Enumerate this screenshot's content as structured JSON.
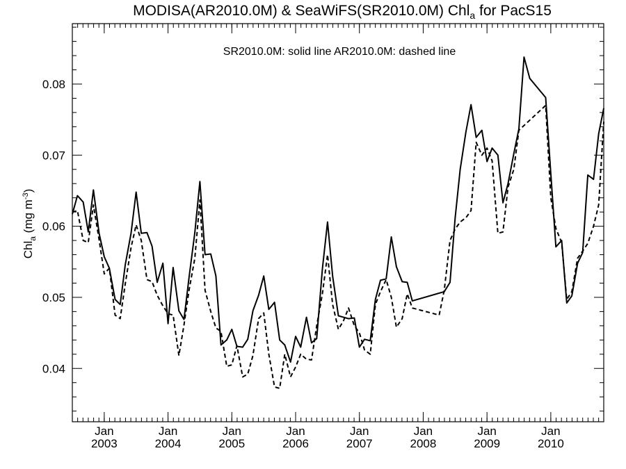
{
  "chart_data": {
    "type": "line",
    "title": {
      "prefix": "MODISA(AR2010.0M) & SeaWiFS(SR2010.0M)  Chl",
      "sub": "a",
      "suffix": " for PacS15"
    },
    "annotation": "SR2010.0M: solid line   AR2010.0M: dashed line",
    "ylabel": {
      "main": "Chl",
      "sub": "a",
      "unit_open": " (mg m",
      "unit_sup": "-3",
      "unit_close": ")"
    },
    "xlim": [
      2002.5,
      2010.83
    ],
    "ylim": [
      0.0325,
      0.0885
    ],
    "grid": false,
    "y_ticks": [
      {
        "value": 0.04,
        "label": "0.04"
      },
      {
        "value": 0.05,
        "label": "0.05"
      },
      {
        "value": 0.06,
        "label": "0.06"
      },
      {
        "value": 0.07,
        "label": "0.07"
      },
      {
        "value": 0.08,
        "label": "0.08"
      }
    ],
    "x_ticks": [
      {
        "value": 2003.0,
        "month": "Jan",
        "year": "2003"
      },
      {
        "value": 2004.0,
        "month": "Jan",
        "year": "2004"
      },
      {
        "value": 2005.0,
        "month": "Jan",
        "year": "2005"
      },
      {
        "value": 2006.0,
        "month": "Jan",
        "year": "2006"
      },
      {
        "value": 2007.0,
        "month": "Jan",
        "year": "2007"
      },
      {
        "value": 2008.0,
        "month": "Jan",
        "year": "2008"
      },
      {
        "value": 2009.0,
        "month": "Jan",
        "year": "2009"
      },
      {
        "value": 2010.0,
        "month": "Jan",
        "year": "2010"
      }
    ],
    "series": [
      {
        "name": "SR2010.0M",
        "style": "solid",
        "points": [
          [
            2002.5,
            0.0617
          ],
          [
            2002.58,
            0.0643
          ],
          [
            2002.67,
            0.0634
          ],
          [
            2002.75,
            0.0592
          ],
          [
            2002.83,
            0.0651
          ],
          [
            2002.92,
            0.059
          ],
          [
            2003.0,
            0.0557
          ],
          [
            2003.08,
            0.0541
          ],
          [
            2003.17,
            0.0497
          ],
          [
            2003.25,
            0.049
          ],
          [
            2003.33,
            0.0546
          ],
          [
            2003.42,
            0.059
          ],
          [
            2003.5,
            0.0648
          ],
          [
            2003.58,
            0.059
          ],
          [
            2003.67,
            0.0591
          ],
          [
            2003.75,
            0.0572
          ],
          [
            2003.83,
            0.0521
          ],
          [
            2003.92,
            0.0548
          ],
          [
            2004.0,
            0.0463
          ],
          [
            2004.08,
            0.0542
          ],
          [
            2004.17,
            0.0481
          ],
          [
            2004.25,
            0.0469
          ],
          [
            2004.33,
            0.0528
          ],
          [
            2004.42,
            0.0591
          ],
          [
            2004.5,
            0.0663
          ],
          [
            2004.58,
            0.056
          ],
          [
            2004.67,
            0.0561
          ],
          [
            2004.75,
            0.053
          ],
          [
            2004.83,
            0.0433
          ],
          [
            2004.92,
            0.044
          ],
          [
            2005.0,
            0.0455
          ],
          [
            2005.08,
            0.0431
          ],
          [
            2005.17,
            0.043
          ],
          [
            2005.25,
            0.0441
          ],
          [
            2005.33,
            0.0481
          ],
          [
            2005.42,
            0.0503
          ],
          [
            2005.5,
            0.053
          ],
          [
            2005.58,
            0.0483
          ],
          [
            2005.67,
            0.0493
          ],
          [
            2005.75,
            0.044
          ],
          [
            2005.83,
            0.0433
          ],
          [
            2005.92,
            0.0409
          ],
          [
            2006.0,
            0.0445
          ],
          [
            2006.08,
            0.043
          ],
          [
            2006.17,
            0.0472
          ],
          [
            2006.25,
            0.0436
          ],
          [
            2006.33,
            0.0442
          ],
          [
            2006.42,
            0.054
          ],
          [
            2006.5,
            0.0606
          ],
          [
            2006.58,
            0.053
          ],
          [
            2006.67,
            0.0474
          ],
          [
            2006.75,
            0.0472
          ],
          [
            2006.83,
            0.047
          ],
          [
            2006.92,
            0.0471
          ],
          [
            2007.0,
            0.043
          ],
          [
            2007.08,
            0.0441
          ],
          [
            2007.17,
            0.0439
          ],
          [
            2007.25,
            0.0497
          ],
          [
            2007.33,
            0.0524
          ],
          [
            2007.42,
            0.0526
          ],
          [
            2007.5,
            0.0585
          ],
          [
            2007.58,
            0.0543
          ],
          [
            2007.67,
            0.0522
          ],
          [
            2007.75,
            0.0521
          ],
          [
            2007.83,
            0.0495
          ],
          [
            2008.33,
            0.0508
          ],
          [
            2008.42,
            0.0521
          ],
          [
            2008.5,
            0.0611
          ],
          [
            2008.58,
            0.068
          ],
          [
            2008.67,
            0.0733
          ],
          [
            2008.75,
            0.0771
          ],
          [
            2008.83,
            0.0725
          ],
          [
            2008.92,
            0.0735
          ],
          [
            2009.0,
            0.0691
          ],
          [
            2009.08,
            0.071
          ],
          [
            2009.17,
            0.07
          ],
          [
            2009.25,
            0.0633
          ],
          [
            2009.33,
            0.066
          ],
          [
            2009.42,
            0.0702
          ],
          [
            2009.5,
            0.0737
          ],
          [
            2009.58,
            0.0838
          ],
          [
            2009.67,
            0.0808
          ],
          [
            2009.92,
            0.0781
          ],
          [
            2010.0,
            0.0674
          ],
          [
            2010.08,
            0.0571
          ],
          [
            2010.17,
            0.058
          ],
          [
            2010.25,
            0.0492
          ],
          [
            2010.33,
            0.0502
          ],
          [
            2010.42,
            0.0548
          ],
          [
            2010.5,
            0.0563
          ],
          [
            2010.58,
            0.0672
          ],
          [
            2010.67,
            0.0666
          ],
          [
            2010.75,
            0.073
          ],
          [
            2010.83,
            0.0766
          ]
        ]
      },
      {
        "name": "AR2010.0M",
        "style": "dashed",
        "points": [
          [
            2002.5,
            0.062
          ],
          [
            2002.58,
            0.0622
          ],
          [
            2002.67,
            0.058
          ],
          [
            2002.75,
            0.0577
          ],
          [
            2002.83,
            0.063
          ],
          [
            2002.92,
            0.0581
          ],
          [
            2003.0,
            0.0533
          ],
          [
            2003.08,
            0.0541
          ],
          [
            2003.17,
            0.0475
          ],
          [
            2003.25,
            0.047
          ],
          [
            2003.33,
            0.0519
          ],
          [
            2003.42,
            0.057
          ],
          [
            2003.5,
            0.0602
          ],
          [
            2003.58,
            0.058
          ],
          [
            2003.67,
            0.0525
          ],
          [
            2003.75,
            0.0522
          ],
          [
            2003.83,
            0.0503
          ],
          [
            2003.92,
            0.0488
          ],
          [
            2004.0,
            0.0477
          ],
          [
            2004.08,
            0.0475
          ],
          [
            2004.17,
            0.0418
          ],
          [
            2004.25,
            0.0461
          ],
          [
            2004.33,
            0.051
          ],
          [
            2004.42,
            0.0555
          ],
          [
            2004.5,
            0.0637
          ],
          [
            2004.58,
            0.051
          ],
          [
            2004.67,
            0.048
          ],
          [
            2004.75,
            0.0457
          ],
          [
            2004.83,
            0.0452
          ],
          [
            2004.92,
            0.0403
          ],
          [
            2005.0,
            0.0405
          ],
          [
            2005.08,
            0.0432
          ],
          [
            2005.17,
            0.0388
          ],
          [
            2005.25,
            0.0392
          ],
          [
            2005.33,
            0.0418
          ],
          [
            2005.42,
            0.047
          ],
          [
            2005.5,
            0.0478
          ],
          [
            2005.58,
            0.042
          ],
          [
            2005.67,
            0.0374
          ],
          [
            2005.75,
            0.0372
          ],
          [
            2005.83,
            0.042
          ],
          [
            2005.92,
            0.0388
          ],
          [
            2006.0,
            0.0402
          ],
          [
            2006.08,
            0.042
          ],
          [
            2006.17,
            0.0413
          ],
          [
            2006.25,
            0.0412
          ],
          [
            2006.33,
            0.046
          ],
          [
            2006.42,
            0.0505
          ],
          [
            2006.5,
            0.056
          ],
          [
            2006.58,
            0.049
          ],
          [
            2006.67,
            0.0455
          ],
          [
            2006.75,
            0.0467
          ],
          [
            2006.83,
            0.0485
          ],
          [
            2006.92,
            0.046
          ],
          [
            2007.0,
            0.045
          ],
          [
            2007.08,
            0.0426
          ],
          [
            2007.17,
            0.042
          ],
          [
            2007.25,
            0.049
          ],
          [
            2007.33,
            0.0508
          ],
          [
            2007.42,
            0.0525
          ],
          [
            2007.5,
            0.05
          ],
          [
            2007.58,
            0.0458
          ],
          [
            2007.67,
            0.047
          ],
          [
            2007.75,
            0.0505
          ],
          [
            2007.83,
            0.0485
          ],
          [
            2008.25,
            0.0475
          ],
          [
            2008.33,
            0.051
          ],
          [
            2008.42,
            0.058
          ],
          [
            2008.5,
            0.0596
          ],
          [
            2008.58,
            0.0606
          ],
          [
            2008.67,
            0.0612
          ],
          [
            2008.75,
            0.0622
          ],
          [
            2008.83,
            0.0718
          ],
          [
            2008.92,
            0.07
          ],
          [
            2009.0,
            0.071
          ],
          [
            2009.08,
            0.0692
          ],
          [
            2009.17,
            0.059
          ],
          [
            2009.25,
            0.0592
          ],
          [
            2009.33,
            0.0655
          ],
          [
            2009.42,
            0.068
          ],
          [
            2009.5,
            0.0735
          ],
          [
            2009.92,
            0.077
          ],
          [
            2010.0,
            0.064
          ],
          [
            2010.08,
            0.0597
          ],
          [
            2010.17,
            0.0577
          ],
          [
            2010.25,
            0.0497
          ],
          [
            2010.33,
            0.0508
          ],
          [
            2010.42,
            0.0555
          ],
          [
            2010.5,
            0.0565
          ],
          [
            2010.58,
            0.0576
          ],
          [
            2010.67,
            0.06
          ],
          [
            2010.75,
            0.063
          ],
          [
            2010.83,
            0.0747
          ]
        ]
      }
    ]
  }
}
